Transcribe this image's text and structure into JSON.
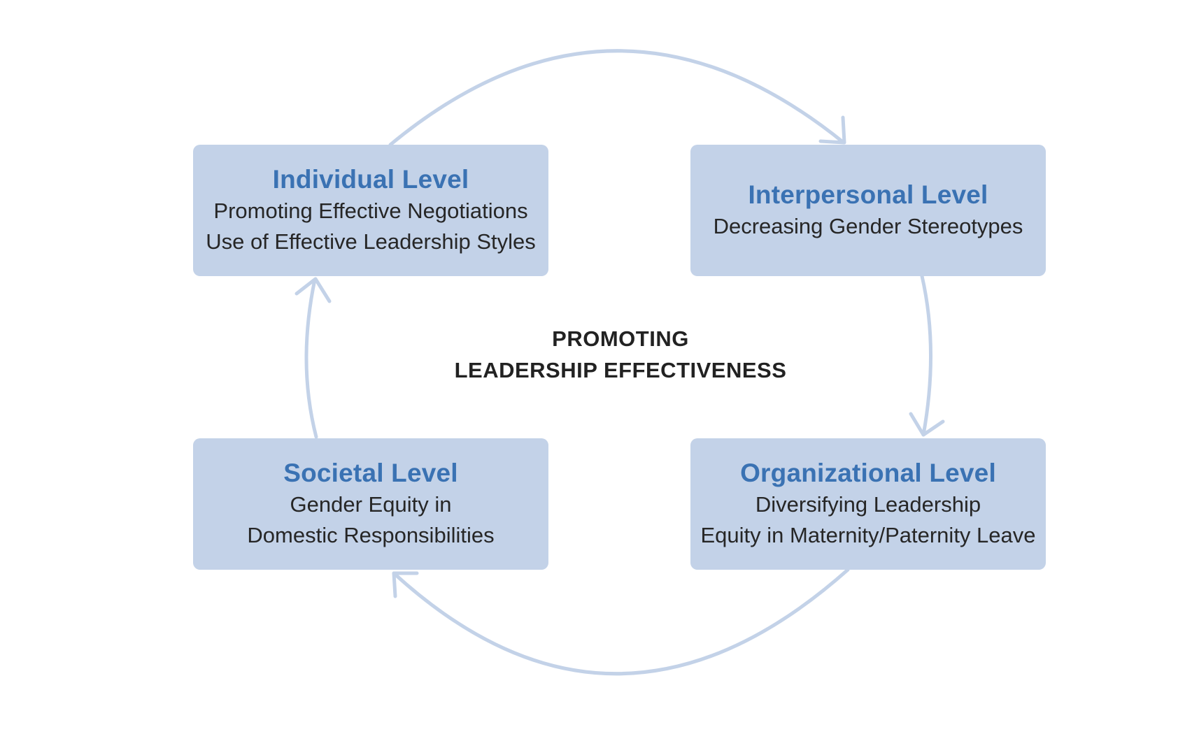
{
  "diagram": {
    "center": {
      "line1": "PROMOTING",
      "line2": "LEADERSHIP EFFECTIVENESS"
    },
    "boxes": {
      "individual": {
        "title": "Individual Level",
        "lines": [
          "Promoting Effective Negotiations",
          "Use of Effective Leadership Styles"
        ]
      },
      "interpersonal": {
        "title": "Interpersonal Level",
        "lines": [
          "Decreasing Gender Stereotypes"
        ]
      },
      "organizational": {
        "title": "Organizational Level",
        "lines": [
          "Diversifying Leadership",
          "Equity in Maternity/Paternity Leave"
        ]
      },
      "societal": {
        "title": "Societal Level",
        "lines": [
          "Gender Equity in",
          "Domestic Responsibilities"
        ]
      }
    },
    "colors": {
      "box_fill": "#c3d2e8",
      "title": "#3a72b3",
      "arrow": "#c3d2e8",
      "text": "#262626"
    }
  }
}
